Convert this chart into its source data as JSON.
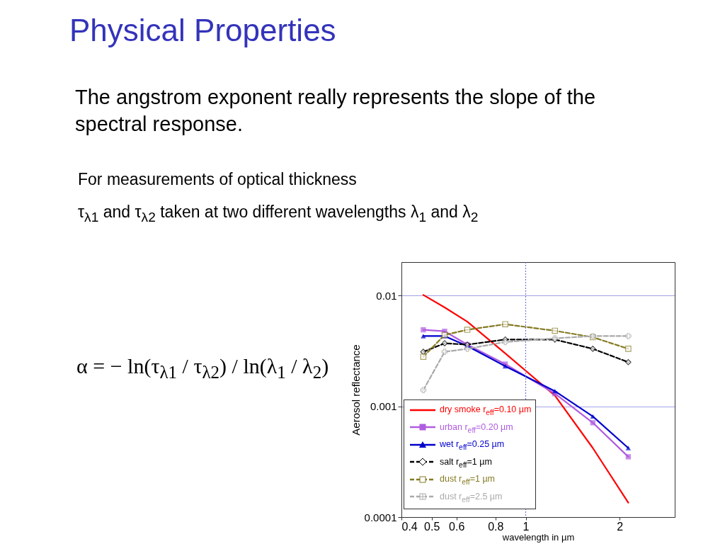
{
  "chart_data": {
    "type": "line",
    "title": "Physical Properties",
    "subtitle": "The angstrom exponent really represents the slope of the spectral response.",
    "annotations": [
      "For measurements of optical thickness",
      "τ$_{λ1}$ and τ$_{λ2}$ taken at two different wavelengths λ$_{1}$ and λ$_{2}$",
      "α = − ln(τ$_{λ1}$ / τ$_{λ2}$) / ln(λ$_{1}$ / λ$_{2}$)"
    ],
    "xlabel": "wavelength in µm",
    "ylabel": "Aerosol reflectance",
    "log": "xy",
    "xlim": [
      0.4,
      3
    ],
    "xticks": [
      0.4,
      0.5,
      0.6,
      0.8,
      1,
      2
    ],
    "ylim": [
      0.0001,
      0.02
    ],
    "yticks": [
      0.0001,
      0.001,
      0.01
    ],
    "grid": "y",
    "legend": "bottom left",
    "ref_lines": [
      {
        "axis": "x",
        "value": 1,
        "color": "#6666dd",
        "line_style": "dotted"
      }
    ],
    "x": [
      0.47,
      0.55,
      0.65,
      0.86,
      1.24,
      1.64,
      2.13
    ],
    "series": [
      {
        "name": "dry smoke r$_{eff}$=0.10 µm",
        "color": "#ff0000",
        "marker": "none",
        "line_style": "solid",
        "values": [
          0.0101,
          0.0078,
          0.0058,
          0.003,
          0.00125,
          0.00042,
          0.000135
        ]
      },
      {
        "name": "urban r$_{eff}$=0.20 µm",
        "color": "#b05ce0",
        "marker": "square",
        "line_style": "solid",
        "values": [
          0.0049,
          0.00475,
          0.0036,
          0.0024,
          0.0013,
          0.00071,
          0.00035
        ]
      },
      {
        "name": "wet  r$_{eff}$=0.25 µm",
        "color": "#0000cc",
        "marker": "triangle",
        "line_style": "solid",
        "values": [
          0.0043,
          0.0043,
          0.0035,
          0.0023,
          0.00137,
          0.00081,
          0.00042
        ]
      },
      {
        "name": "salt r$_{eff}$=1 µm",
        "color": "#000000",
        "marker": "diamond",
        "line_style": "dashed",
        "values": [
          0.0031,
          0.0037,
          0.0036,
          0.004,
          0.004,
          0.0033,
          0.0025
        ]
      },
      {
        "name": "dust r$_{eff}$=1 µm",
        "color": "#857a22",
        "marker": "square",
        "line_style": "dashed",
        "values": [
          0.0028,
          0.0044,
          0.0049,
          0.0055,
          0.0048,
          0.0042,
          0.0033
        ]
      },
      {
        "name": "dust r$_{eff}$=2.5 µm",
        "color": "#aaaaaa",
        "marker": "cross",
        "line_style": "dashed",
        "values": [
          0.0014,
          0.0031,
          0.0033,
          0.0038,
          0.0041,
          0.0043,
          0.0043
        ]
      }
    ]
  }
}
